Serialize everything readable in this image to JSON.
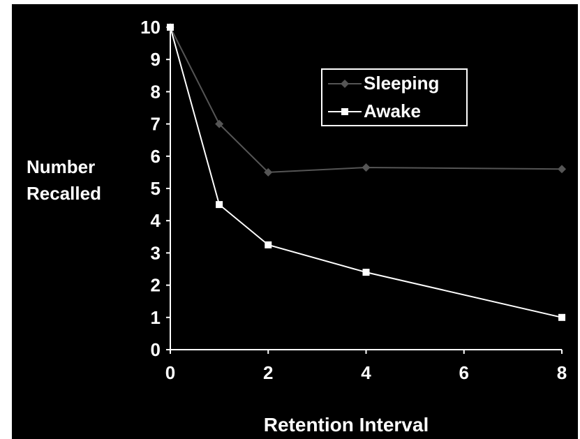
{
  "chart_data": {
    "type": "line",
    "title": "",
    "xlabel": "Retention Interval",
    "ylabel_lines": [
      "Number",
      "Recalled"
    ],
    "x": [
      0,
      1,
      2,
      4,
      8
    ],
    "xticks": [
      0,
      2,
      4,
      6,
      8
    ],
    "yticks": [
      0,
      1,
      2,
      3,
      4,
      5,
      6,
      7,
      8,
      9,
      10
    ],
    "xlim": [
      0,
      8
    ],
    "ylim": [
      0,
      10
    ],
    "grid": false,
    "legend_position": "top-right",
    "series": [
      {
        "name": "Sleeping",
        "marker": "diamond",
        "color": "#555555",
        "values": [
          10,
          7,
          5.5,
          5.65,
          5.6
        ]
      },
      {
        "name": "Awake",
        "marker": "square",
        "color": "#ffffff",
        "values": [
          10,
          4.5,
          3.25,
          2.4,
          1
        ]
      }
    ]
  }
}
